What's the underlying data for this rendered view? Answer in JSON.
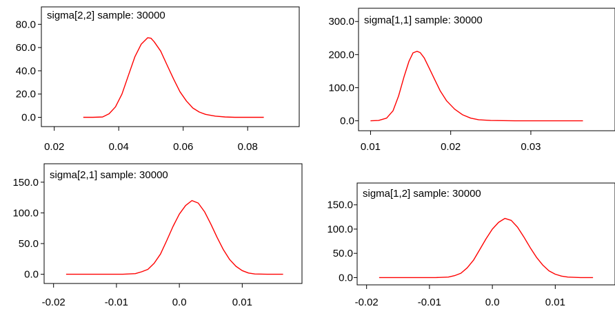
{
  "colors": {
    "curve": "#ff0000",
    "axis": "#000000",
    "background": "#ffffff"
  },
  "chart_data": [
    {
      "type": "line",
      "title": "sigma[2,2] sample: 30000",
      "xlim": [
        0.016,
        0.096
      ],
      "ylim": [
        -8,
        95
      ],
      "xticks": [
        0.02,
        0.04,
        0.06,
        0.08
      ],
      "xtick_labels": [
        "0.02",
        "0.04",
        "0.06",
        "0.08"
      ],
      "yticks": [
        0,
        20,
        40,
        60,
        80
      ],
      "ytick_labels": [
        "0.0",
        "20.0",
        "40.0",
        "60.0",
        "80.0"
      ],
      "x": [
        0.029,
        0.032,
        0.035,
        0.037,
        0.039,
        0.041,
        0.043,
        0.045,
        0.047,
        0.049,
        0.05,
        0.051,
        0.053,
        0.055,
        0.057,
        0.059,
        0.061,
        0.063,
        0.065,
        0.067,
        0.07,
        0.073,
        0.076,
        0.08,
        0.085
      ],
      "y": [
        0.0,
        0.0,
        0.3,
        3.0,
        9.0,
        20.0,
        36.0,
        52.0,
        63.0,
        68.5,
        68.0,
        65.0,
        57.0,
        45.0,
        33.0,
        22.0,
        14.0,
        8.0,
        4.5,
        2.5,
        1.0,
        0.3,
        0.0,
        0.0,
        0.0
      ]
    },
    {
      "type": "line",
      "title": "sigma[1,1] sample: 30000",
      "xlim": [
        0.0085,
        0.0405
      ],
      "ylim": [
        -30,
        340
      ],
      "xticks": [
        0.01,
        0.02,
        0.03
      ],
      "xtick_labels": [
        "0.01",
        "0.02",
        "0.03"
      ],
      "yticks": [
        0,
        100,
        200,
        300
      ],
      "ytick_labels": [
        "0.0",
        "100.0",
        "200.0",
        "300.0"
      ],
      "x": [
        0.01,
        0.011,
        0.012,
        0.0128,
        0.0135,
        0.0142,
        0.0148,
        0.0153,
        0.0158,
        0.0162,
        0.0167,
        0.0173,
        0.018,
        0.0187,
        0.0195,
        0.0205,
        0.0215,
        0.0225,
        0.0235,
        0.025,
        0.028,
        0.032,
        0.0365
      ],
      "y": [
        0,
        1,
        8,
        30,
        75,
        135,
        180,
        205,
        210,
        206,
        190,
        160,
        125,
        90,
        60,
        35,
        18,
        8,
        3,
        1,
        0,
        0,
        0
      ]
    },
    {
      "type": "line",
      "title": "sigma[2,1] sample: 30000",
      "xlim": [
        -0.0215,
        0.0195
      ],
      "ylim": [
        -15,
        180
      ],
      "xticks": [
        -0.02,
        -0.01,
        0.0,
        0.01
      ],
      "xtick_labels": [
        "-0.02",
        "-0.01",
        "0.0",
        "0.01"
      ],
      "yticks": [
        0,
        50,
        100,
        150
      ],
      "ytick_labels": [
        "0.0",
        "50.0",
        "100.0",
        "150.0"
      ],
      "x": [
        -0.018,
        -0.015,
        -0.012,
        -0.009,
        -0.007,
        -0.006,
        -0.005,
        -0.004,
        -0.003,
        -0.002,
        -0.001,
        0.0,
        0.001,
        0.002,
        0.003,
        0.004,
        0.005,
        0.006,
        0.007,
        0.008,
        0.009,
        0.01,
        0.011,
        0.012,
        0.014,
        0.0165
      ],
      "y": [
        0,
        0,
        0,
        0,
        1,
        4,
        8,
        18,
        33,
        55,
        78,
        98,
        112,
        120,
        116,
        102,
        82,
        60,
        40,
        24,
        13,
        6,
        2,
        0.5,
        0,
        0
      ]
    },
    {
      "type": "line",
      "title": "sigma[1,2] sample: 30000",
      "xlim": [
        -0.0215,
        0.0195
      ],
      "ylim": [
        -15,
        195
      ],
      "xticks": [
        -0.02,
        -0.01,
        0.0,
        0.01
      ],
      "xtick_labels": [
        "-0.02",
        "-0.01",
        "0.0",
        "0.01"
      ],
      "yticks": [
        0,
        50,
        100,
        150
      ],
      "ytick_labels": [
        "0.0",
        "50.0",
        "100.0",
        "150.0"
      ],
      "x": [
        -0.018,
        -0.015,
        -0.012,
        -0.009,
        -0.007,
        -0.006,
        -0.005,
        -0.004,
        -0.003,
        -0.002,
        -0.001,
        0.0,
        0.001,
        0.002,
        0.003,
        0.004,
        0.005,
        0.006,
        0.007,
        0.008,
        0.009,
        0.01,
        0.011,
        0.012,
        0.014,
        0.016
      ],
      "y": [
        0,
        0,
        0,
        0,
        1,
        4,
        9,
        20,
        36,
        58,
        80,
        100,
        114,
        122,
        118,
        104,
        84,
        62,
        42,
        26,
        14,
        7,
        3,
        1,
        0,
        0
      ]
    }
  ]
}
